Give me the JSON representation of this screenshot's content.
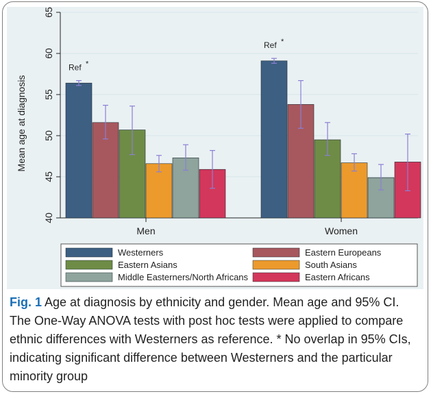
{
  "chart_data": {
    "type": "bar",
    "ylabel": "Mean age at diagnosis",
    "xlabel": "",
    "ylim": [
      40,
      65
    ],
    "yticks": [
      "40",
      "45",
      "50",
      "55",
      "60",
      "65"
    ],
    "grid": true,
    "legend_position": "bottom",
    "categories": [
      "Men",
      "Women"
    ],
    "series": [
      {
        "name": "Westerners",
        "color": "#3d5f82",
        "values": [
          56.4,
          59.1
        ],
        "ci_low": [
          56.1,
          58.8
        ],
        "ci_high": [
          56.7,
          59.4
        ]
      },
      {
        "name": "Eastern Europeans",
        "color": "#a7585e",
        "values": [
          51.6,
          53.8
        ],
        "ci_low": [
          49.6,
          50.9
        ],
        "ci_high": [
          53.7,
          56.7
        ]
      },
      {
        "name": "Eastern Asians",
        "color": "#6e8c46",
        "values": [
          50.7,
          49.5
        ],
        "ci_low": [
          47.7,
          47.6
        ],
        "ci_high": [
          53.6,
          51.6
        ]
      },
      {
        "name": "South Asians",
        "color": "#ec9a2c",
        "values": [
          46.6,
          46.7
        ],
        "ci_low": [
          45.6,
          45.7
        ],
        "ci_high": [
          47.6,
          47.8
        ]
      },
      {
        "name": "Middle Easterners/North Africans",
        "color": "#8ea49c",
        "values": [
          47.3,
          44.9
        ],
        "ci_low": [
          45.8,
          43.4
        ],
        "ci_high": [
          48.9,
          46.5
        ]
      },
      {
        "name": "Eastern Africans",
        "color": "#d3375b",
        "values": [
          45.9,
          46.8
        ],
        "ci_low": [
          43.6,
          43.3
        ],
        "ci_high": [
          48.2,
          50.2
        ]
      }
    ],
    "annotations": [
      {
        "text": "Ref",
        "superscript": "*",
        "category": "Men",
        "series": "Westerners"
      },
      {
        "text": "Ref",
        "superscript": "*",
        "category": "Women",
        "series": "Westerners"
      }
    ]
  },
  "caption": {
    "label": "Fig. 1",
    "text": " Age at diagnosis by ethnicity and gender. Mean age and 95% CI. The One-Way ANOVA tests with post hoc tests were applied to compare ethnic differences with Westerners as reference. * No overlap in 95% CIs, indicating significant difference between Westerners and the particular minority group"
  }
}
